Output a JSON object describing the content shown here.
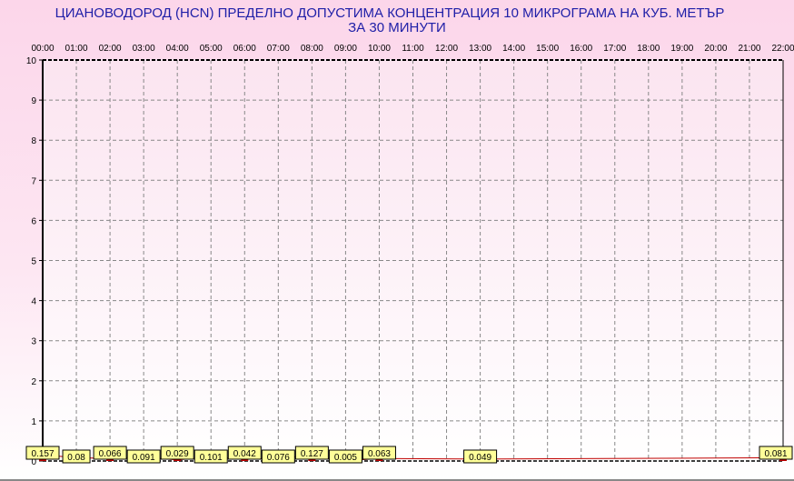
{
  "chart_data": {
    "type": "line",
    "title": "ЦИАНОВОДОРОД     (HCN)    ПРЕДЕЛНО ДОПУСТИМА КОНЦЕНТРАЦИЯ 10 МИКРОГРАМА  НА КУБ. МЕТЪР",
    "subtitle": "ЗА 30 МИНУТИ",
    "xlabel": "",
    "ylabel": "",
    "x": [
      "00:00",
      "01:00",
      "02:00",
      "03:00",
      "04:00",
      "05:00",
      "06:00",
      "07:00",
      "08:00",
      "09:00",
      "10:00",
      "11:00",
      "12:00",
      "13:00",
      "14:00",
      "15:00",
      "16:00",
      "17:00",
      "18:00",
      "19:00",
      "20:00",
      "21:00",
      "22:00"
    ],
    "values": [
      0.157,
      0.08,
      0.066,
      0.091,
      0.029,
      0.101,
      0.042,
      0.076,
      0.127,
      0.005,
      0.063,
      null,
      null,
      0.049,
      null,
      null,
      null,
      null,
      null,
      null,
      null,
      null,
      0.081
    ],
    "yticks": [
      "0",
      "1",
      "2",
      "3",
      "4",
      "5",
      "6",
      "7",
      "8",
      "9",
      "10"
    ],
    "ylim": [
      0,
      10
    ],
    "x_axis_position": "top",
    "grid": true,
    "colors": {
      "line": "#c00000",
      "bar": "#c00000",
      "label_bg": "#ffff99",
      "title": "#2020a8"
    }
  }
}
